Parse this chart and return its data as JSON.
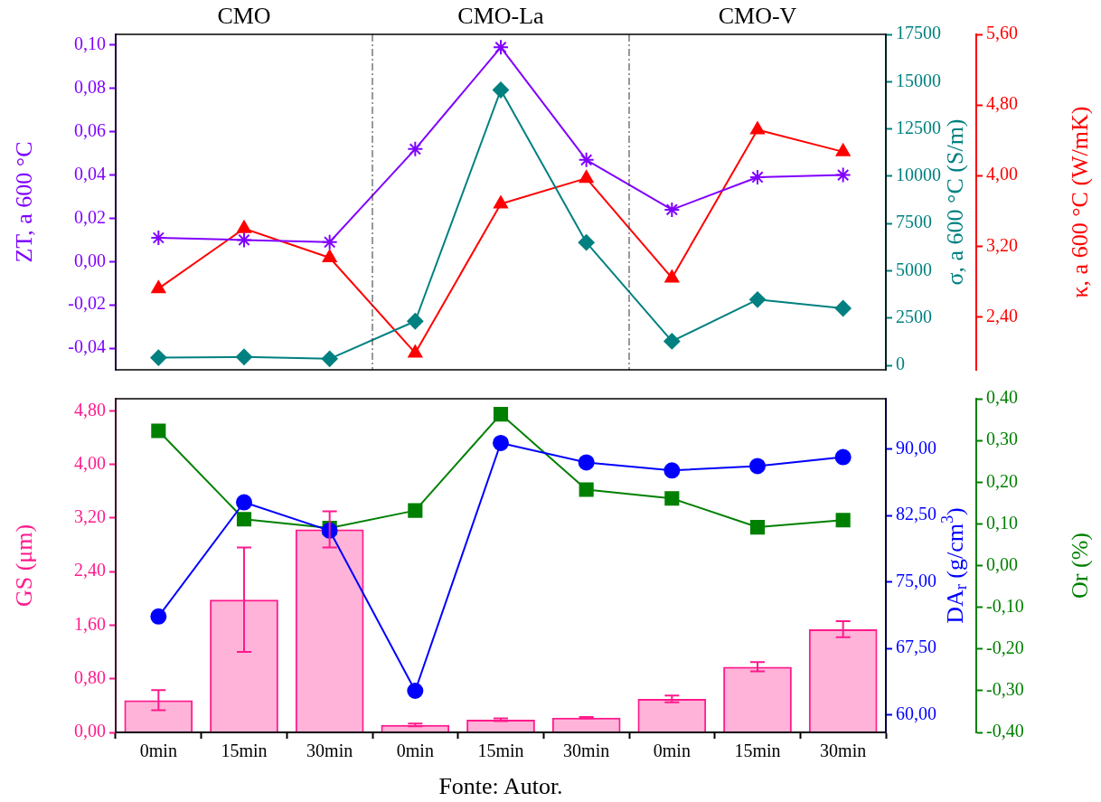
{
  "chart_data": [
    {
      "type": "line",
      "categories": [
        null,
        null,
        null,
        null,
        null,
        null,
        null,
        null,
        null
      ],
      "ylabel": "ZT, a 600 °C",
      "y2label": "σ, a 600 °C (S/m)",
      "y3label": "κ, a 600 °C (W/mK)",
      "series": [
        {
          "color": "#8000ff",
          "marker": "cross",
          "axis": "y",
          "values": [
            0.011,
            0.01,
            0.009,
            0.052,
            0.099,
            0.047,
            0.024,
            0.039,
            0.04
          ]
        },
        {
          "color": "#008080",
          "marker": "diamond",
          "axis": "y2",
          "values": [
            410,
            450,
            350,
            2340,
            14560,
            6500,
            1280,
            3480,
            3020
          ]
        },
        {
          "color": "#ff0000",
          "marker": "triangle",
          "axis": "y3",
          "values": [
            2.72,
            3.4,
            3.07,
            1.99,
            3.68,
            3.97,
            2.84,
            4.52,
            4.27
          ]
        }
      ],
      "ylim": [
        -0.05,
        0.105
      ],
      "yticks": [
        {
          "value": -0.04,
          "label": "-0,04"
        },
        {
          "value": -0.02,
          "label": "-0,02"
        },
        {
          "value": 0,
          "label": "0,00"
        },
        {
          "value": 0.02,
          "label": "0,02"
        },
        {
          "value": 0.04,
          "label": "0,04"
        },
        {
          "value": 0.06,
          "label": "0,06"
        },
        {
          "value": 0.08,
          "label": "0,08"
        },
        {
          "value": 0.1,
          "label": "0,10"
        }
      ],
      "y2lim": [
        -230,
        17500
      ],
      "y2ticks": [
        0,
        2500,
        5000,
        7500,
        10000,
        12500,
        15000,
        17500
      ],
      "y3lim": [
        1.8,
        5.6
      ],
      "y3ticks": [
        {
          "value": 2.4,
          "label": "2,40"
        },
        {
          "value": 3.2,
          "label": "3,20"
        },
        {
          "value": 4.0,
          "label": "4,00"
        },
        {
          "value": 4.8,
          "label": "4,80"
        },
        {
          "value": 5.6,
          "label": "5,60"
        }
      ],
      "tick_labels": "y",
      "annotations": [
        "CMO",
        "CMO-La",
        "CMO-V"
      ]
    },
    {
      "type": "bar",
      "categories": [
        "0min",
        "15min",
        "30min",
        "0min",
        "15min",
        "30min",
        "0min",
        "15min",
        "30min"
      ],
      "ylabel": "GS (μm)",
      "y2label": "DA$_{r}$ (g/cm$^{3}$)",
      "y3label": "Or (%)",
      "series": [
        {
          "type": "bar",
          "color": "#ff1a8c",
          "axis": "y",
          "values": [
            0.48,
            1.98,
            3.03,
            0.11,
            0.19,
            0.22,
            0.5,
            0.98,
            1.54
          ],
          "errors": [
            0.15,
            0.78,
            0.27,
            0.02,
            0.02,
            0.01,
            0.05,
            0.07,
            0.12
          ]
        },
        {
          "type": "line",
          "color": "#0000ff",
          "marker": "circle",
          "axis": "y2",
          "values": [
            71.1,
            84.0,
            80.8,
            62.7,
            90.7,
            88.5,
            87.6,
            88.1,
            89.1
          ]
        },
        {
          "type": "line",
          "color": "#008000",
          "marker": "square",
          "axis": "y3",
          "values": [
            0.323,
            0.111,
            0.09,
            0.132,
            0.363,
            0.182,
            0.161,
            0.092,
            0.109
          ]
        }
      ],
      "ylim": [
        0,
        4.98
      ],
      "yticks": [
        {
          "value": 0,
          "label": "0,00"
        },
        {
          "value": 0.8,
          "label": "0,80"
        },
        {
          "value": 1.6,
          "label": "1,60"
        },
        {
          "value": 2.4,
          "label": "2,40"
        },
        {
          "value": 3.2,
          "label": "3,20"
        },
        {
          "value": 4.0,
          "label": "4,00"
        },
        {
          "value": 4.8,
          "label": "4,80"
        }
      ],
      "y2lim": [
        58.0,
        95.7
      ],
      "y2ticks": [
        {
          "value": 60,
          "label": "60,00"
        },
        {
          "value": 67.5,
          "label": "67,50"
        },
        {
          "value": 75,
          "label": "75,00"
        },
        {
          "value": 82.5,
          "label": "82,50"
        },
        {
          "value": 90,
          "label": "90,00"
        }
      ],
      "y3lim": [
        -0.4,
        0.4
      ],
      "y3ticks": [
        {
          "value": -0.4,
          "label": "-0,40"
        },
        {
          "value": -0.3,
          "label": "-0,30"
        },
        {
          "value": -0.2,
          "label": "-0,20"
        },
        {
          "value": -0.1,
          "label": "-0,10"
        },
        {
          "value": 0,
          "label": "0,00"
        },
        {
          "value": 0.1,
          "label": "0,10"
        },
        {
          "value": 0.2,
          "label": "0,20"
        },
        {
          "value": 0.3,
          "label": "0,30"
        },
        {
          "value": 0.4,
          "label": "0,40"
        }
      ],
      "annotations": [
        "Fonte: Autor."
      ]
    }
  ]
}
